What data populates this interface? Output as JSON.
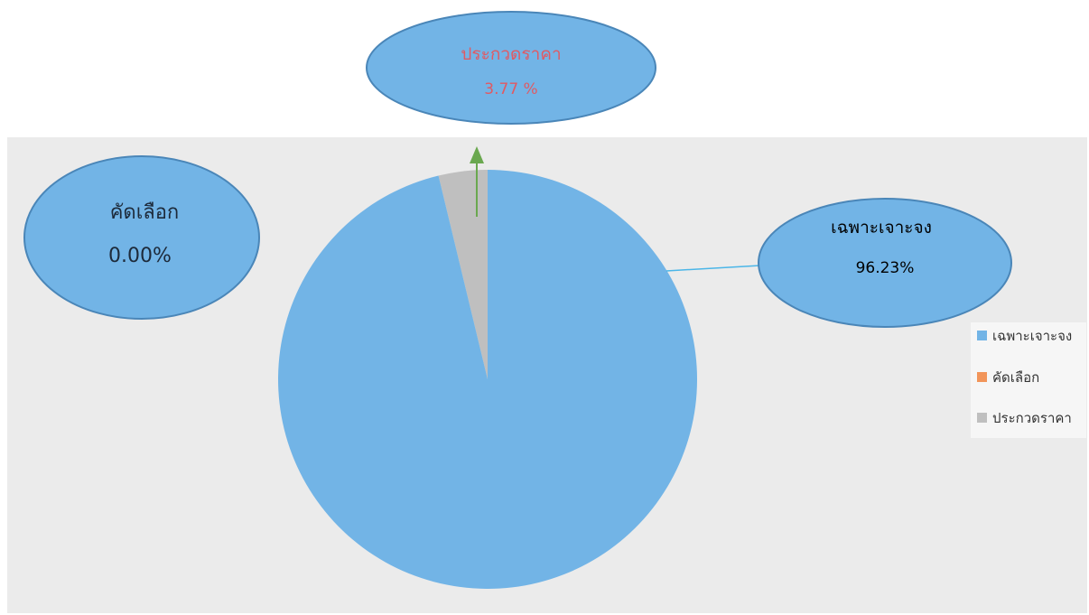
{
  "chart_data": {
    "type": "pie",
    "categories": [
      "เฉพาะเจาะจง",
      "คัดเลือก",
      "ประกวดราคา"
    ],
    "values": [
      96.23,
      0.0,
      3.77
    ],
    "colors": [
      "#72b4e6",
      "#f2955a",
      "#bfbfbf"
    ],
    "legend": {
      "placement": "right",
      "items": [
        {
          "label": "เฉพาะเจาะจง",
          "color": "#72b4e6"
        },
        {
          "label": "คัดเลือก",
          "color": "#f2955a"
        },
        {
          "label": "ประกวดราคา",
          "color": "#bfbfbf"
        }
      ]
    },
    "callouts": [
      {
        "category": "ประกวดราคา",
        "name": "ประกวดราคา",
        "value_text": "3.77 %",
        "text_color": "#f4f9ff",
        "connector_color": "#6aa84f"
      },
      {
        "category": "คัดเลือก",
        "name": "คัดเลือก",
        "value_text": "0.00%",
        "text_color": "#e05a63"
      },
      {
        "category": "เฉพาะเจาะจง",
        "name": "เฉพาะเจาะจง",
        "value_text": "96.23%",
        "text_color": "#1d2a3a",
        "connector_color": "#4bb6e8"
      }
    ]
  }
}
